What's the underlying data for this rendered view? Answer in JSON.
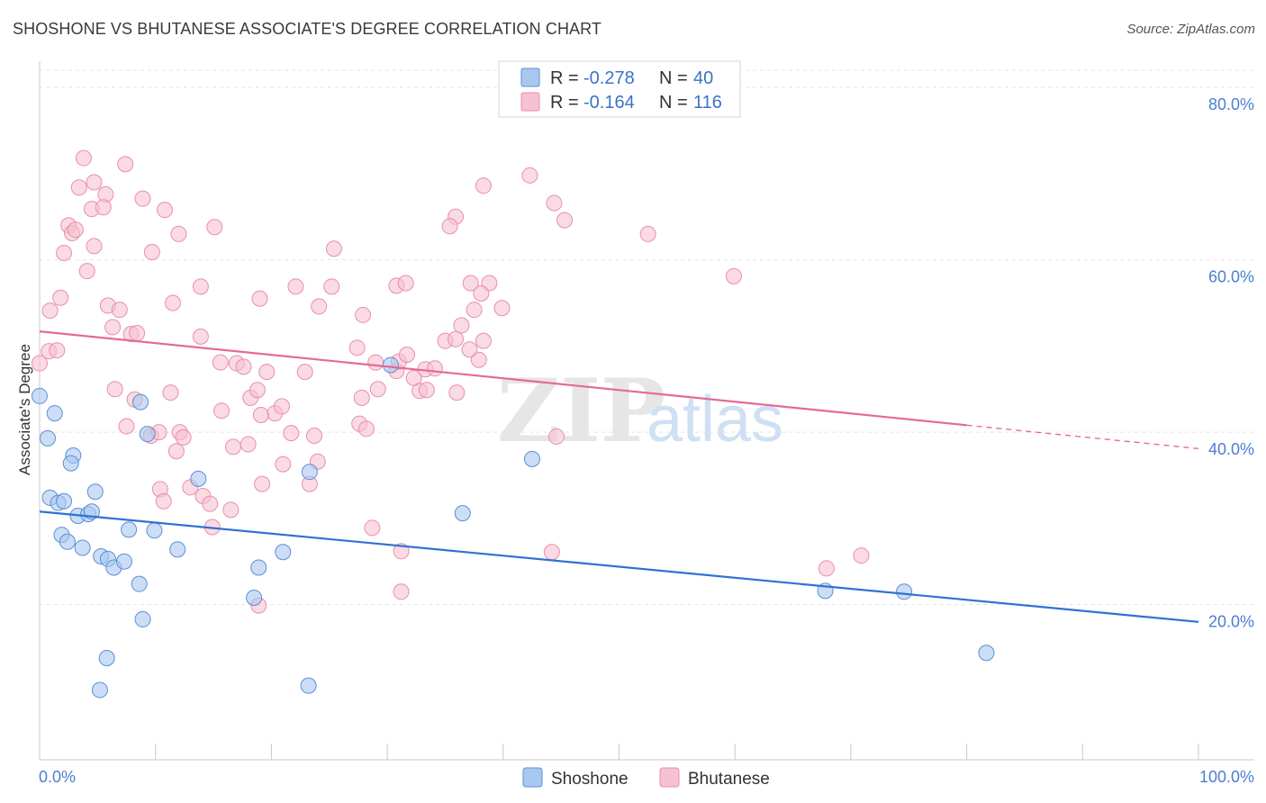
{
  "title": "SHOSHONE VS BHUTANESE ASSOCIATE'S DEGREE CORRELATION CHART",
  "source": "Source: ZipAtlas.com",
  "watermark": {
    "zip": "ZIP",
    "atlas": "atlas"
  },
  "chart_data": {
    "type": "scatter",
    "xlabel": "",
    "ylabel": "Associate's Degree",
    "xlim": [
      0,
      100
    ],
    "ylim": [
      2,
      82
    ],
    "x_tick_labels": {
      "left": "0.0%",
      "right": "100.0%"
    },
    "y_ticks": [
      {
        "value": 20,
        "label": "20.0%"
      },
      {
        "value": 40,
        "label": "40.0%"
      },
      {
        "value": 60,
        "label": "60.0%"
      },
      {
        "value": 80,
        "label": "80.0%"
      }
    ],
    "grid": true,
    "legend_position": "top-center",
    "legend": [
      {
        "r_label": "R = ",
        "r_value": "-0.278",
        "n_label": "N = ",
        "n_value": "40",
        "color": "#9fc3ee"
      },
      {
        "r_label": "R = ",
        "r_value": "-0.164",
        "n_label": "N = ",
        "n_value": "116",
        "color": "#f6b6c9"
      }
    ],
    "bottom_legend": [
      "Shoshone",
      "Bhutanese"
    ],
    "colors": {
      "shoshone_fill": "#a9c8ef",
      "shoshone_stroke": "#5b8fd6",
      "shoshone_line": "#2f72d3",
      "bhutanese_fill": "#f7c1d1",
      "bhutanese_stroke": "#e98fab",
      "bhutanese_line": "#e56a93"
    },
    "series": [
      {
        "name": "Shoshone",
        "trend": {
          "x0": 0,
          "y0": 30.8,
          "x1": 100,
          "y1": 18.0
        },
        "points": [
          [
            0,
            44.2
          ],
          [
            1.3,
            42.2
          ],
          [
            0.7,
            39.3
          ],
          [
            2.9,
            37.3
          ],
          [
            2.7,
            36.4
          ],
          [
            0.9,
            32.4
          ],
          [
            1.6,
            31.8
          ],
          [
            2.1,
            32.0
          ],
          [
            4.8,
            33.1
          ],
          [
            3.3,
            30.3
          ],
          [
            4.2,
            30.5
          ],
          [
            4.5,
            30.8
          ],
          [
            1.9,
            28.1
          ],
          [
            2.4,
            27.3
          ],
          [
            3.7,
            26.6
          ],
          [
            5.3,
            25.6
          ],
          [
            5.9,
            25.3
          ],
          [
            6.4,
            24.3
          ],
          [
            7.3,
            25.0
          ],
          [
            7.7,
            28.7
          ],
          [
            9.9,
            28.6
          ],
          [
            8.7,
            43.5
          ],
          [
            9.3,
            39.8
          ],
          [
            11.9,
            26.4
          ],
          [
            13.7,
            34.6
          ],
          [
            8.6,
            22.4
          ],
          [
            8.9,
            18.3
          ],
          [
            5.8,
            13.8
          ],
          [
            5.2,
            10.1
          ],
          [
            18.9,
            24.3
          ],
          [
            18.5,
            20.8
          ],
          [
            21.0,
            26.1
          ],
          [
            23.3,
            35.4
          ],
          [
            23.2,
            10.6
          ],
          [
            30.3,
            47.8
          ],
          [
            36.5,
            30.6
          ],
          [
            42.5,
            36.9
          ],
          [
            67.8,
            21.6
          ],
          [
            74.6,
            21.5
          ],
          [
            81.7,
            14.4
          ]
        ]
      },
      {
        "name": "Bhutanese",
        "trend": {
          "x0": 0,
          "y0": 51.7,
          "x1": 100,
          "y1": 38.1,
          "solid_until": 80
        },
        "points": [
          [
            3.8,
            71.8
          ],
          [
            7.4,
            71.1
          ],
          [
            3.4,
            68.4
          ],
          [
            4.7,
            69.0
          ],
          [
            5.7,
            67.6
          ],
          [
            8.9,
            67.1
          ],
          [
            4.5,
            65.9
          ],
          [
            5.5,
            66.1
          ],
          [
            10.8,
            65.8
          ],
          [
            2.5,
            64.0
          ],
          [
            2.8,
            63.1
          ],
          [
            3.1,
            63.5
          ],
          [
            12.0,
            63.0
          ],
          [
            15.1,
            63.8
          ],
          [
            4.7,
            61.6
          ],
          [
            2.1,
            60.8
          ],
          [
            9.7,
            60.9
          ],
          [
            4.1,
            58.7
          ],
          [
            0.9,
            54.1
          ],
          [
            1.8,
            55.6
          ],
          [
            5.9,
            54.7
          ],
          [
            6.9,
            54.2
          ],
          [
            11.5,
            55.0
          ],
          [
            13.9,
            56.9
          ],
          [
            6.3,
            52.2
          ],
          [
            7.9,
            51.4
          ],
          [
            8.4,
            51.5
          ],
          [
            13.9,
            51.1
          ],
          [
            0,
            48.0
          ],
          [
            0.8,
            49.4
          ],
          [
            1.5,
            49.5
          ],
          [
            15.6,
            48.1
          ],
          [
            17.0,
            48.0
          ],
          [
            17.6,
            47.6
          ],
          [
            6.5,
            45.0
          ],
          [
            8.2,
            43.8
          ],
          [
            11.3,
            44.6
          ],
          [
            15.7,
            42.5
          ],
          [
            18.2,
            44.0
          ],
          [
            18.8,
            44.9
          ],
          [
            7.5,
            40.7
          ],
          [
            9.6,
            39.6
          ],
          [
            10.3,
            40.0
          ],
          [
            12.1,
            40.0
          ],
          [
            12.4,
            39.4
          ],
          [
            11.8,
            37.8
          ],
          [
            16.7,
            38.3
          ],
          [
            18.0,
            38.6
          ],
          [
            19.6,
            47.0
          ],
          [
            20.3,
            42.2
          ],
          [
            20.9,
            43.0
          ],
          [
            21.7,
            39.9
          ],
          [
            22.9,
            47.0
          ],
          [
            23.7,
            39.6
          ],
          [
            19.1,
            42.0
          ],
          [
            21.0,
            36.3
          ],
          [
            24.0,
            36.6
          ],
          [
            19.2,
            34.0
          ],
          [
            10.4,
            33.4
          ],
          [
            10.7,
            32.0
          ],
          [
            13.0,
            33.6
          ],
          [
            14.1,
            32.6
          ],
          [
            14.7,
            31.7
          ],
          [
            16.5,
            31.0
          ],
          [
            14.9,
            29.0
          ],
          [
            19.0,
            55.5
          ],
          [
            22.1,
            56.9
          ],
          [
            24.1,
            54.6
          ],
          [
            25.2,
            56.9
          ],
          [
            25.4,
            61.3
          ],
          [
            27.9,
            53.6
          ],
          [
            30.8,
            57.0
          ],
          [
            31.6,
            57.3
          ],
          [
            27.4,
            49.8
          ],
          [
            29.0,
            48.1
          ],
          [
            30.8,
            47.1
          ],
          [
            31.0,
            48.2
          ],
          [
            31.7,
            49.0
          ],
          [
            32.3,
            46.3
          ],
          [
            33.3,
            47.3
          ],
          [
            34.1,
            47.4
          ],
          [
            32.8,
            44.8
          ],
          [
            33.4,
            44.9
          ],
          [
            27.8,
            44.0
          ],
          [
            27.6,
            41.0
          ],
          [
            28.2,
            40.4
          ],
          [
            28.7,
            28.9
          ],
          [
            31.2,
            26.2
          ],
          [
            31.2,
            21.5
          ],
          [
            18.9,
            19.9
          ],
          [
            35.0,
            50.6
          ],
          [
            35.9,
            50.8
          ],
          [
            35.9,
            65.0
          ],
          [
            35.4,
            63.9
          ],
          [
            37.2,
            57.3
          ],
          [
            38.8,
            57.3
          ],
          [
            38.1,
            56.1
          ],
          [
            37.5,
            54.2
          ],
          [
            37.9,
            48.4
          ],
          [
            38.3,
            50.6
          ],
          [
            36.4,
            52.4
          ],
          [
            37.1,
            49.6
          ],
          [
            36.0,
            44.6
          ],
          [
            39.9,
            54.4
          ],
          [
            38.3,
            68.6
          ],
          [
            42.3,
            69.8
          ],
          [
            44.4,
            66.6
          ],
          [
            45.3,
            64.6
          ],
          [
            52.5,
            63.0
          ],
          [
            59.9,
            58.1
          ],
          [
            44.6,
            39.5
          ],
          [
            44.2,
            26.1
          ],
          [
            67.9,
            24.2
          ],
          [
            70.9,
            25.7
          ],
          [
            23.3,
            34.0
          ],
          [
            29.2,
            45.0
          ]
        ]
      }
    ]
  }
}
